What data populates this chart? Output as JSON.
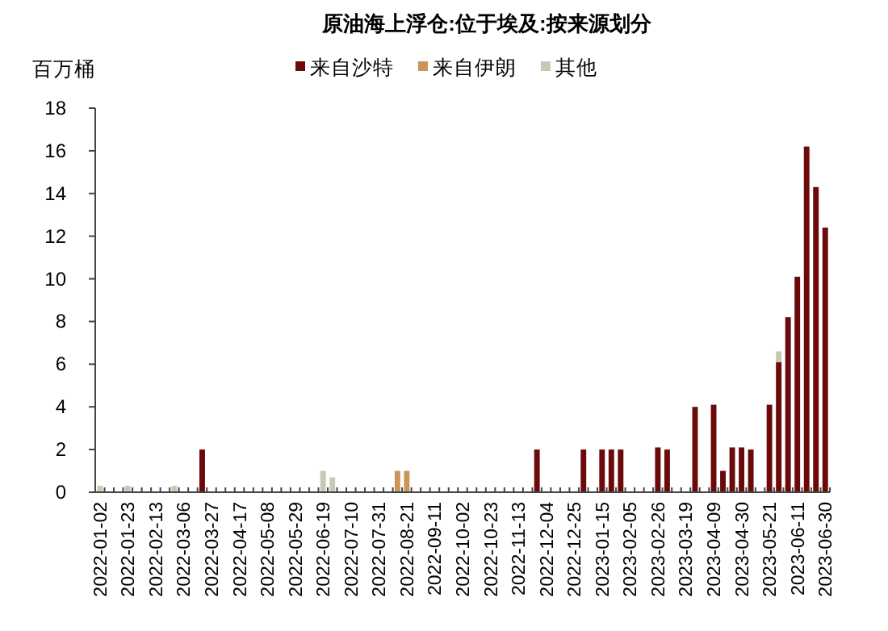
{
  "chart_data": {
    "type": "bar",
    "title": "原油海上浮仓:位于埃及:按来源划分",
    "ylabel": "百万桶",
    "categories": [
      "2022-01-02",
      null,
      null,
      "2022-01-23",
      null,
      null,
      "2022-02-13",
      null,
      null,
      "2022-03-06",
      null,
      null,
      "2022-03-27",
      null,
      null,
      "2022-04-17",
      null,
      null,
      "2022-05-08",
      null,
      null,
      "2022-05-29",
      null,
      null,
      "2022-06-19",
      null,
      null,
      "2022-07-10",
      null,
      null,
      "2022-07-31",
      null,
      null,
      "2022-08-21",
      null,
      null,
      "2022-09-11",
      null,
      null,
      "2022-10-02",
      null,
      null,
      "2022-10-23",
      null,
      null,
      "2022-11-13",
      null,
      null,
      "2022-12-04",
      null,
      null,
      "2022-12-25",
      null,
      null,
      "2023-01-15",
      null,
      null,
      "2023-02-05",
      null,
      null,
      "2023-02-26",
      null,
      null,
      "2023-03-19",
      null,
      null,
      "2023-04-09",
      null,
      null,
      "2023-04-30",
      null,
      null,
      "2023-05-21",
      null,
      null,
      "2023-06-11",
      null,
      null,
      "2023-06-30"
    ],
    "stacked": true,
    "ylim": [
      0,
      18
    ],
    "yticks": [
      0,
      2,
      4,
      6,
      8,
      10,
      12,
      14,
      16,
      18
    ],
    "grid": false,
    "legend": "top",
    "series": [
      {
        "name": "来自沙特",
        "color": "#6b0a0a",
        "values": [
          null,
          null,
          null,
          null,
          null,
          null,
          null,
          null,
          null,
          null,
          null,
          2,
          null,
          null,
          null,
          null,
          null,
          null,
          null,
          null,
          null,
          null,
          null,
          null,
          null,
          null,
          null,
          null,
          null,
          null,
          null,
          null,
          null,
          null,
          null,
          null,
          null,
          null,
          null,
          null,
          null,
          null,
          null,
          null,
          null,
          null,
          null,
          2,
          null,
          null,
          null,
          null,
          2,
          null,
          2,
          2,
          2,
          null,
          null,
          null,
          2.1,
          2,
          null,
          null,
          4,
          null,
          4.1,
          1,
          2.1,
          2.1,
          2,
          null,
          4.1,
          6.1,
          8.2,
          10.1,
          16.2,
          14.3,
          12.4
        ]
      },
      {
        "name": "来自伊朗",
        "color": "#c9965a",
        "values": [
          null,
          null,
          null,
          null,
          null,
          null,
          null,
          null,
          null,
          null,
          null,
          null,
          null,
          null,
          null,
          null,
          null,
          null,
          null,
          null,
          null,
          null,
          null,
          null,
          null,
          null,
          null,
          null,
          null,
          null,
          null,
          null,
          1,
          1,
          null,
          null,
          null,
          null,
          null,
          null,
          null,
          null,
          null,
          null,
          null,
          null,
          null,
          null,
          null,
          null,
          null,
          null,
          null,
          null,
          null,
          null,
          null,
          null,
          null,
          null,
          null,
          null,
          null,
          null,
          null,
          null,
          null,
          null,
          null,
          null,
          null,
          null,
          null,
          null,
          null,
          null,
          null,
          null,
          null
        ]
      },
      {
        "name": "其他",
        "color": "#c8c8b4",
        "values": [
          0.3,
          null,
          null,
          0.3,
          null,
          null,
          null,
          null,
          0.3,
          null,
          null,
          null,
          null,
          null,
          null,
          null,
          null,
          null,
          null,
          null,
          null,
          null,
          null,
          null,
          1,
          0.7,
          null,
          null,
          null,
          null,
          null,
          null,
          null,
          null,
          null,
          null,
          null,
          null,
          null,
          null,
          null,
          null,
          null,
          null,
          null,
          null,
          null,
          null,
          null,
          null,
          null,
          null,
          null,
          null,
          null,
          null,
          null,
          null,
          null,
          null,
          null,
          null,
          null,
          null,
          null,
          null,
          null,
          null,
          null,
          null,
          null,
          null,
          null,
          0.5,
          null,
          null,
          null,
          null,
          null
        ]
      }
    ]
  }
}
